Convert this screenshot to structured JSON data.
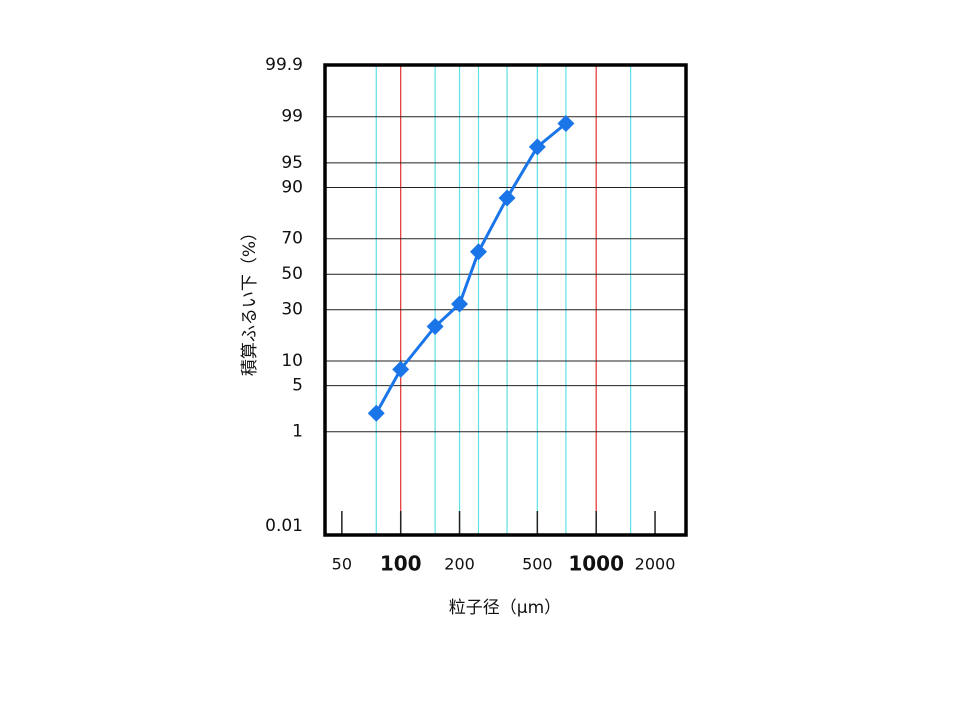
{
  "chart_data": {
    "type": "line",
    "x_label": "粒子径（μm）",
    "y_label": "積算ふるい下（%）",
    "x": [
      75,
      100,
      150,
      200,
      250,
      350,
      500,
      700
    ],
    "series": [
      {
        "color": "#1a75e8",
        "values": [
          2,
          8,
          22,
          33,
          63,
          87,
          97,
          98.7
        ]
      }
    ],
    "xscale": "log",
    "yscale": "probability",
    "xlim": [
      41,
      2880
    ],
    "ylim": [
      0.01,
      99.9
    ],
    "xticks": [
      50,
      100,
      200,
      500,
      1000,
      2000
    ],
    "yticks": [
      0.01,
      1,
      5,
      10,
      30,
      50,
      70,
      90,
      95,
      99,
      99.9
    ],
    "xgrid_major": [
      100,
      1000
    ],
    "xgrid_major_color": "#e53030",
    "xgrid_minor": [
      75,
      150,
      200,
      250,
      350,
      500,
      700,
      1500
    ],
    "xgrid_minor_color": "#5ee0e8",
    "grid": true
  }
}
